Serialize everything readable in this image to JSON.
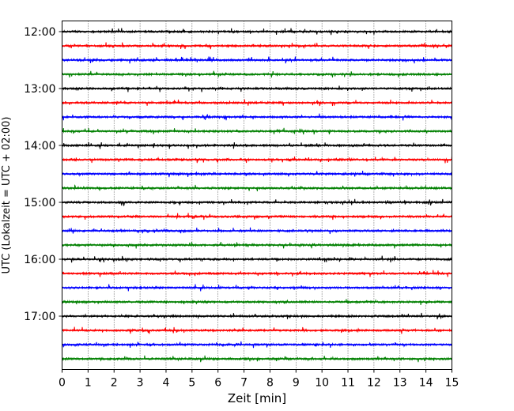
{
  "chart_data": {
    "type": "line",
    "title": "",
    "xlabel": "Zeit  [min]",
    "ylabel": "UTC (Lokalzeit = UTC + 02:00)",
    "xlim": [
      0,
      15
    ],
    "x_ticks": [
      "0",
      "1",
      "2",
      "3",
      "4",
      "5",
      "6",
      "7",
      "8",
      "9",
      "10",
      "11",
      "12",
      "13",
      "14",
      "15"
    ],
    "y_tick_labels": [
      "12:00",
      "13:00",
      "14:00",
      "15:00",
      "16:00",
      "17:00"
    ],
    "grid": "vertical dotted at each minute",
    "trace_colors_cycle": [
      "#000000",
      "#ff0000",
      "#0000ff",
      "#008000"
    ],
    "series": [
      {
        "start": "12:00",
        "color": "#000000"
      },
      {
        "start": "12:15",
        "color": "#ff0000"
      },
      {
        "start": "12:30",
        "color": "#0000ff"
      },
      {
        "start": "12:45",
        "color": "#008000"
      },
      {
        "start": "13:00",
        "color": "#000000"
      },
      {
        "start": "13:15",
        "color": "#ff0000"
      },
      {
        "start": "13:30",
        "color": "#0000ff"
      },
      {
        "start": "13:45",
        "color": "#008000"
      },
      {
        "start": "14:00",
        "color": "#000000"
      },
      {
        "start": "14:15",
        "color": "#ff0000"
      },
      {
        "start": "14:30",
        "color": "#0000ff"
      },
      {
        "start": "14:45",
        "color": "#008000"
      },
      {
        "start": "15:00",
        "color": "#000000"
      },
      {
        "start": "15:15",
        "color": "#ff0000"
      },
      {
        "start": "15:30",
        "color": "#0000ff"
      },
      {
        "start": "15:45",
        "color": "#008000"
      },
      {
        "start": "16:00",
        "color": "#000000"
      },
      {
        "start": "16:15",
        "color": "#ff0000"
      },
      {
        "start": "16:30",
        "color": "#0000ff"
      },
      {
        "start": "16:45",
        "color": "#008000"
      },
      {
        "start": "17:00",
        "color": "#000000"
      },
      {
        "start": "17:15",
        "color": "#ff0000"
      },
      {
        "start": "17:30",
        "color": "#0000ff"
      },
      {
        "start": "17:45",
        "color": "#008000"
      }
    ]
  }
}
